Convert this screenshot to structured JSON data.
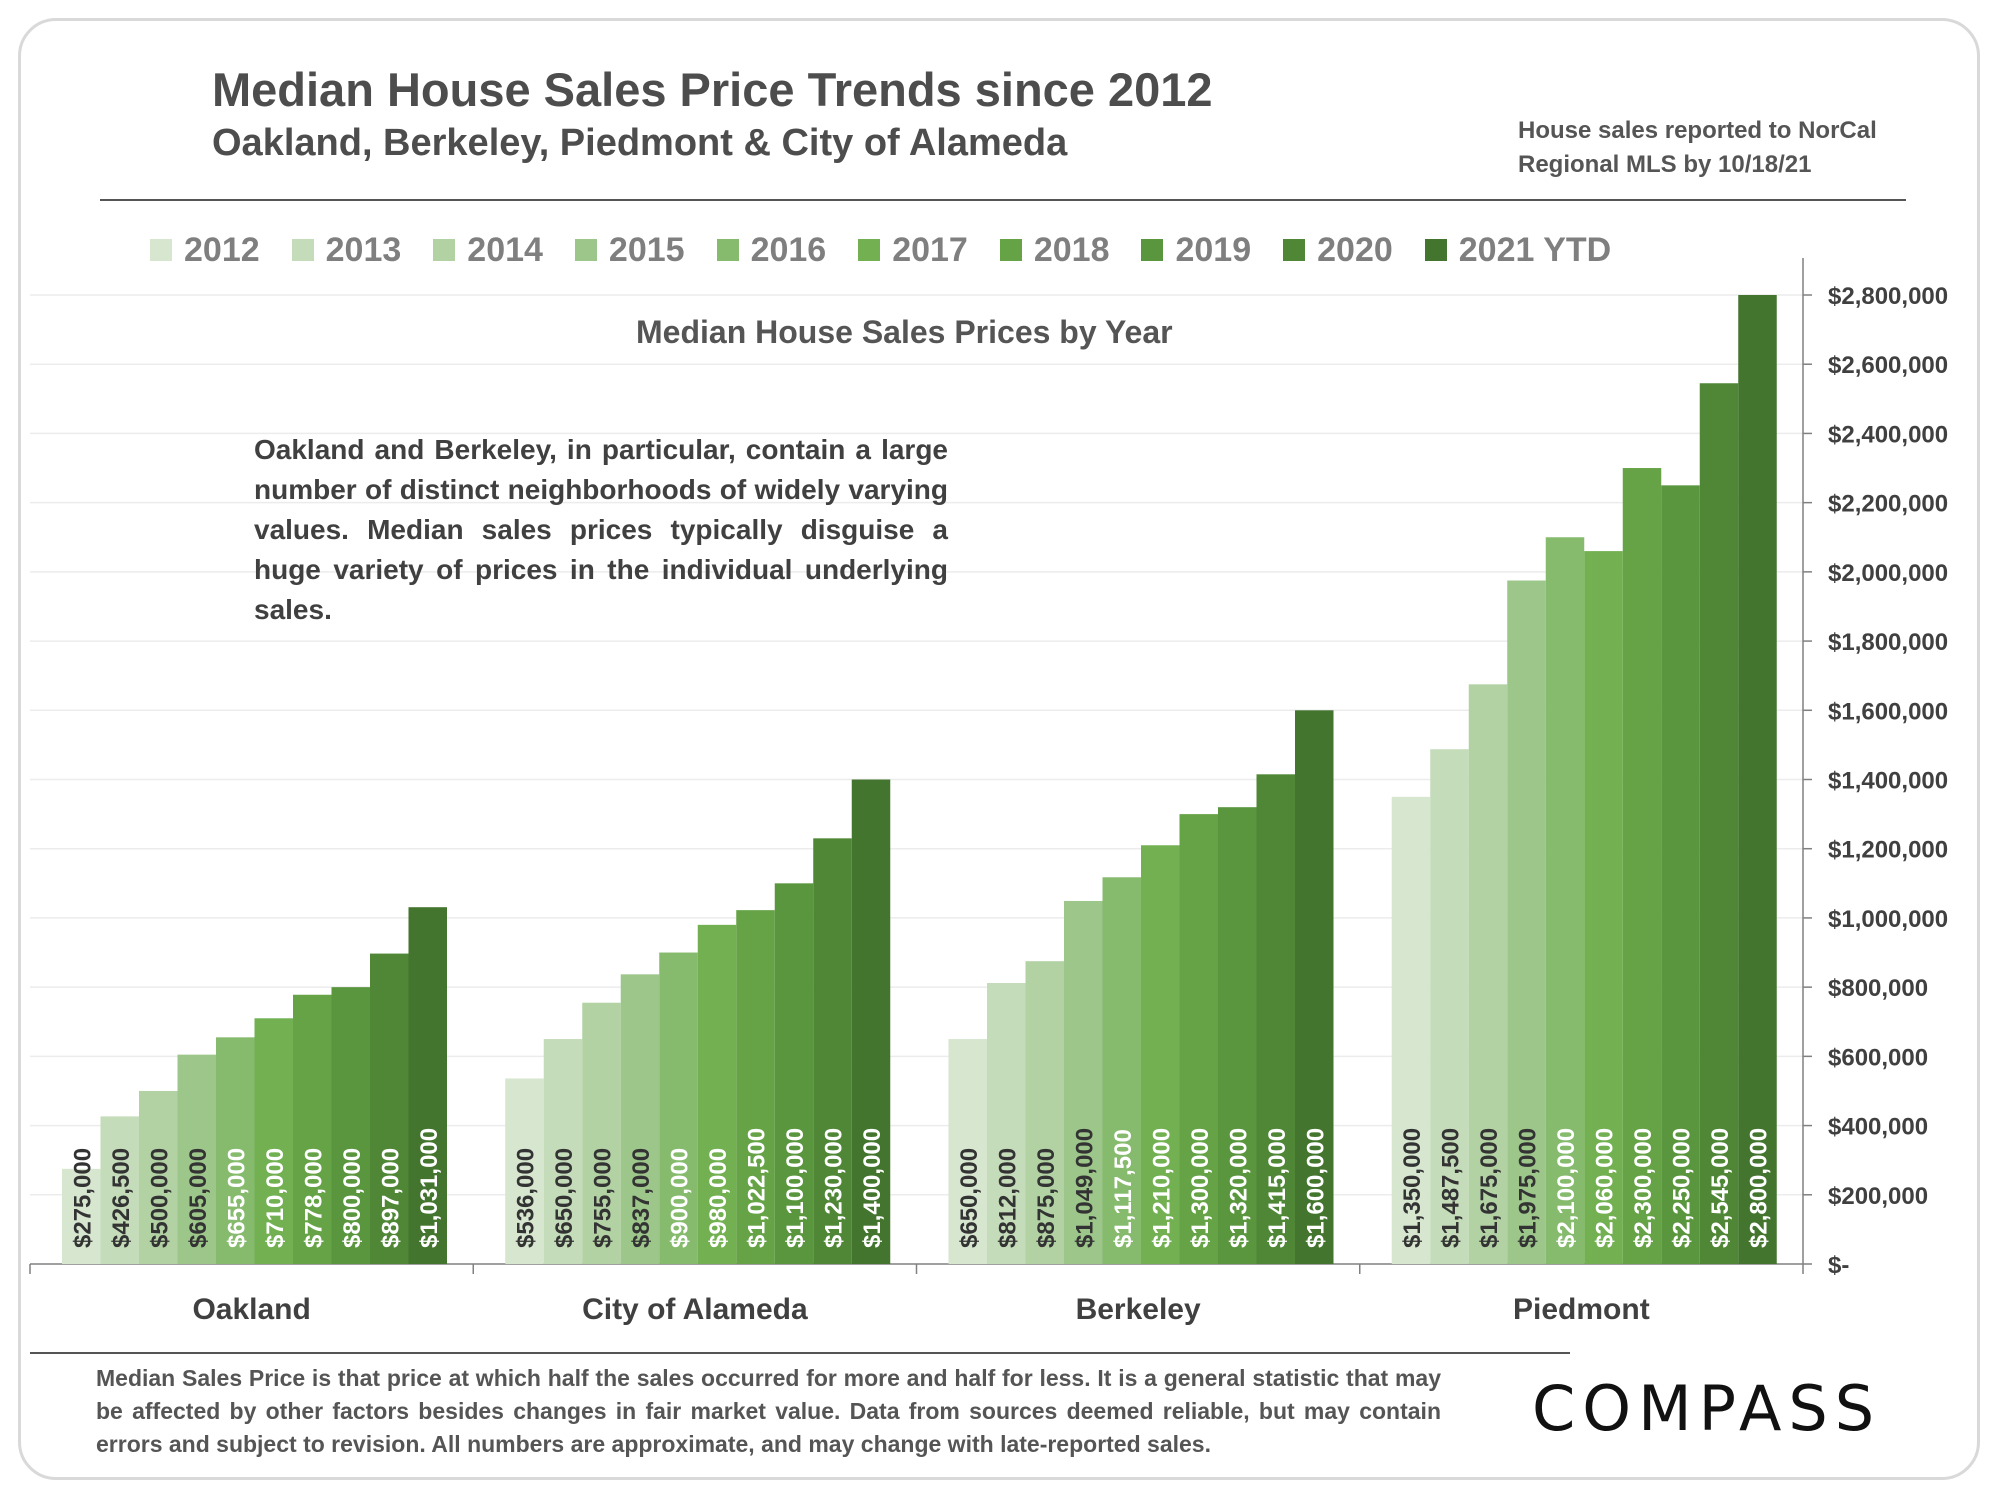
{
  "header": {
    "title": "Median House Sales Price Trends since 2012",
    "subtitle": "Oakland, Berkeley, Piedmont & City of Alameda",
    "source_note": "House sales reported to NorCal Regional MLS by 10/18/21"
  },
  "annotation": "Oakland and Berkeley, in particular, contain a large number of distinct neighborhoods of widely varying values. Median sales prices typically disguise a huge variety of prices in the individual underlying sales.",
  "footnote": "Median Sales Price is that price at which half the sales occurred for more and half for less. It is a general statistic that may be affected by other factors besides changes in fair market value. Data from sources deemed reliable, but may contain errors and subject to revision.  All numbers are approximate, and may change with late-reported sales.",
  "logo": "COMPASS",
  "chart_data": {
    "type": "bar",
    "title": "Median House Sales Prices by Year",
    "xlabel": "",
    "ylabel": "",
    "ylim": [
      0,
      2800000
    ],
    "y_ticks": [
      0,
      200000,
      400000,
      600000,
      800000,
      1000000,
      1200000,
      1400000,
      1600000,
      1800000,
      2000000,
      2200000,
      2400000,
      2600000,
      2800000
    ],
    "y_tick_labels": [
      "$-",
      "$200,000",
      "$400,000",
      "$600,000",
      "$800,000",
      "$1,000,000",
      "$1,200,000",
      "$1,400,000",
      "$1,600,000",
      "$1,800,000",
      "$2,000,000",
      "$2,200,000",
      "$2,400,000",
      "$2,600,000",
      "$2,800,000"
    ],
    "y_axis_position": "right",
    "grid": true,
    "legend_position": "top",
    "categories": [
      "Oakland",
      "City of Alameda",
      "Berkeley",
      "Piedmont"
    ],
    "series": [
      {
        "name": "2012",
        "color": "#d6e6cf",
        "values": [
          275000,
          536000,
          650000,
          1350000
        ]
      },
      {
        "name": "2013",
        "color": "#c4dcb9",
        "values": [
          426500,
          650000,
          812000,
          1487500
        ]
      },
      {
        "name": "2014",
        "color": "#b2d2a4",
        "values": [
          500000,
          755000,
          875000,
          1675000
        ]
      },
      {
        "name": "2015",
        "color": "#9cc68a",
        "values": [
          605000,
          837000,
          1049000,
          1975000
        ]
      },
      {
        "name": "2016",
        "color": "#86bb6d",
        "values": [
          655000,
          900000,
          1117500,
          2100000
        ]
      },
      {
        "name": "2017",
        "color": "#72b052",
        "values": [
          710000,
          980000,
          1210000,
          2060000
        ]
      },
      {
        "name": "2018",
        "color": "#66a346",
        "values": [
          778000,
          1022500,
          1300000,
          2300000
        ]
      },
      {
        "name": "2019",
        "color": "#5a963e",
        "values": [
          800000,
          1100000,
          1320000,
          2250000
        ]
      },
      {
        "name": "2020",
        "color": "#4f8736",
        "values": [
          897000,
          1230000,
          1415000,
          2545000
        ]
      },
      {
        "name": "2021 YTD",
        "color": "#43752e",
        "values": [
          1031000,
          1400000,
          1600000,
          2800000
        ]
      }
    ],
    "data_labels": [
      [
        "$275,000",
        "$426,500",
        "$500,000",
        "$605,000",
        "$655,000",
        "$710,000",
        "$778,000",
        "$800,000",
        "$897,000",
        "$1,031,000"
      ],
      [
        "$536,000",
        "$650,000",
        "$755,000",
        "$837,000",
        "$900,000",
        "$980,000",
        "$1,022,500",
        "$1,100,000",
        "$1,230,000",
        "$1,400,000"
      ],
      [
        "$650,000",
        "$812,000",
        "$875,000",
        "$1,049,000",
        "$1,117,500",
        "$1,210,000",
        "$1,300,000",
        "$1,320,000",
        "$1,415,000",
        "$1,600,000"
      ],
      [
        "$1,350,000",
        "$1,487,500",
        "$1,675,000",
        "$1,975,000",
        "$2,100,000",
        "$2,060,000",
        "$2,300,000",
        "$2,250,000",
        "$2,545,000",
        "$2,800,000"
      ]
    ]
  }
}
